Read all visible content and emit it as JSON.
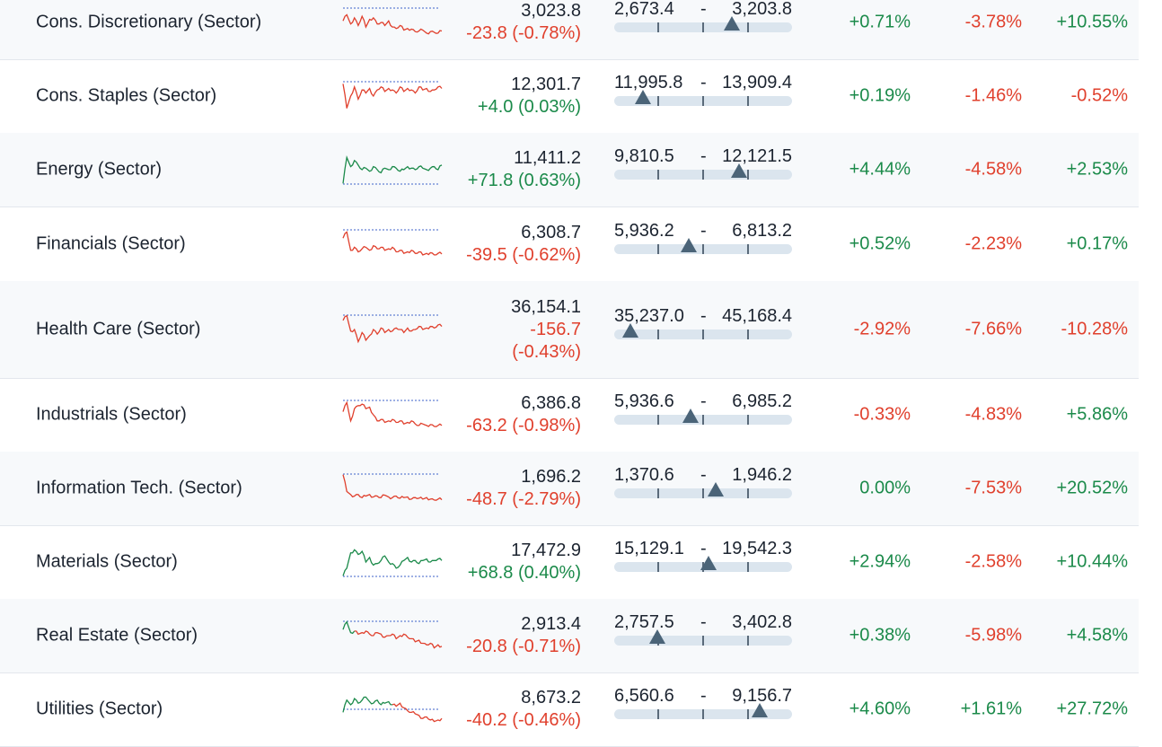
{
  "colors": {
    "up": "#1b8a4a",
    "down": "#e0402d",
    "marker": "#4b6478",
    "track": "#dbe5ee"
  },
  "rows": [
    {
      "name": "Cons. Discretionary (Sector)",
      "price": "3,023.8",
      "change": "-23.8",
      "change_pct": "(-0.78%)",
      "dir": "down",
      "range_low": "2,673.4",
      "range_sep": "-",
      "range_high": "3,203.8",
      "range_pos": 0.66,
      "p1": "+0.71%",
      "p1_dir": "up",
      "p2": "-3.78%",
      "p2_dir": "down",
      "p3": "+10.55%",
      "p3_dir": "up",
      "spark": {
        "color": "down",
        "ref": "top",
        "pts": [
          0.45,
          0.25,
          0.55,
          0.35,
          0.6,
          0.3,
          0.65,
          0.4,
          0.35,
          0.55,
          0.5,
          0.6,
          0.45,
          0.65,
          0.7,
          0.6,
          0.75,
          0.7,
          0.72,
          0.8,
          0.78,
          0.75,
          0.85,
          0.8,
          0.82,
          0.85,
          0.78
        ]
      }
    },
    {
      "name": "Cons. Staples (Sector)",
      "price": "12,301.7",
      "change": "+4.0",
      "change_pct": "(0.03%)",
      "dir": "up",
      "range_low": "11,995.8",
      "range_sep": "-",
      "range_high": "13,909.4",
      "range_pos": 0.16,
      "p1": "+0.19%",
      "p1_dir": "up",
      "p2": "-1.46%",
      "p2_dir": "down",
      "p3": "-0.52%",
      "p3_dir": "down",
      "spark": {
        "color": "down",
        "ref": "top",
        "pts": [
          0.1,
          0.9,
          0.5,
          0.2,
          0.6,
          0.3,
          0.4,
          0.25,
          0.5,
          0.3,
          0.2,
          0.35,
          0.25,
          0.3,
          0.4,
          0.2,
          0.35,
          0.25,
          0.3,
          0.4,
          0.2,
          0.3,
          0.25,
          0.35,
          0.3,
          0.2,
          0.25
        ]
      }
    },
    {
      "name": "Energy (Sector)",
      "price": "11,411.2",
      "change": "+71.8",
      "change_pct": "(0.63%)",
      "dir": "up",
      "range_low": "9,810.5",
      "range_sep": "-",
      "range_high": "12,121.5",
      "range_pos": 0.7,
      "p1": "+4.44%",
      "p1_dir": "up",
      "p2": "-4.58%",
      "p2_dir": "down",
      "p3": "+2.53%",
      "p3_dir": "up",
      "spark": {
        "color": "up",
        "ref": "bottom",
        "pts": [
          0.95,
          0.1,
          0.4,
          0.2,
          0.35,
          0.5,
          0.45,
          0.55,
          0.4,
          0.5,
          0.6,
          0.45,
          0.5,
          0.4,
          0.45,
          0.55,
          0.5,
          0.4,
          0.45,
          0.5,
          0.4,
          0.45,
          0.5,
          0.45,
          0.4,
          0.5,
          0.35
        ]
      }
    },
    {
      "name": "Financials (Sector)",
      "price": "6,308.7",
      "change": "-39.5",
      "change_pct": "(-0.62%)",
      "dir": "down",
      "range_low": "5,936.2",
      "range_sep": "-",
      "range_high": "6,813.2",
      "range_pos": 0.42,
      "p1": "+0.52%",
      "p1_dir": "up",
      "p2": "-2.23%",
      "p2_dir": "down",
      "p3": "+0.17%",
      "p3_dir": "up",
      "spark": {
        "color": "down",
        "ref": "top",
        "pts": [
          0.3,
          0.1,
          0.7,
          0.6,
          0.75,
          0.65,
          0.6,
          0.7,
          0.55,
          0.65,
          0.6,
          0.7,
          0.65,
          0.6,
          0.75,
          0.7,
          0.8,
          0.75,
          0.7,
          0.8,
          0.75,
          0.85,
          0.8,
          0.78,
          0.85,
          0.8,
          0.82
        ]
      }
    },
    {
      "name": "Health Care (Sector)",
      "price": "36,154.1",
      "change": "-156.7",
      "change_pct": "(-0.43%)",
      "dir": "down",
      "range_low": "35,237.0",
      "range_sep": "-",
      "range_high": "45,168.4",
      "range_pos": 0.09,
      "p1": "-2.92%",
      "p1_dir": "down",
      "p2": "-7.66%",
      "p2_dir": "down",
      "p3": "-10.28%",
      "p3_dir": "down",
      "spark": {
        "color": "down",
        "ref": "top",
        "pts": [
          0.2,
          0.05,
          0.55,
          0.5,
          0.9,
          0.6,
          0.85,
          0.7,
          0.5,
          0.65,
          0.45,
          0.6,
          0.5,
          0.55,
          0.45,
          0.5,
          0.6,
          0.45,
          0.55,
          0.5,
          0.4,
          0.5,
          0.45,
          0.4,
          0.45,
          0.35,
          0.4
        ]
      }
    },
    {
      "name": "Industrials (Sector)",
      "price": "6,386.8",
      "change": "-63.2",
      "change_pct": "(-0.98%)",
      "dir": "down",
      "range_low": "5,936.6",
      "range_sep": "-",
      "range_high": "6,985.2",
      "range_pos": 0.43,
      "p1": "-0.33%",
      "p1_dir": "down",
      "p2": "-4.83%",
      "p2_dir": "down",
      "p3": "+5.86%",
      "p3_dir": "up",
      "spark": {
        "color": "down",
        "ref": "top",
        "pts": [
          0.4,
          0.1,
          0.7,
          0.3,
          0.2,
          0.15,
          0.3,
          0.25,
          0.5,
          0.7,
          0.65,
          0.75,
          0.7,
          0.65,
          0.75,
          0.7,
          0.8,
          0.75,
          0.7,
          0.8,
          0.85,
          0.8,
          0.85,
          0.82,
          0.88,
          0.85,
          0.85
        ]
      }
    },
    {
      "name": "Information Tech. (Sector)",
      "price": "1,696.2",
      "change": "-48.7",
      "change_pct": "(-2.79%)",
      "dir": "down",
      "range_low": "1,370.6",
      "range_sep": "-",
      "range_high": "1,946.2",
      "range_pos": 0.57,
      "p1": "0.00%",
      "p1_dir": "up",
      "p2": "-7.53%",
      "p2_dir": "down",
      "p3": "+20.52%",
      "p3_dir": "up",
      "spark": {
        "color": "down",
        "ref": "top",
        "pts": [
          0.05,
          0.6,
          0.7,
          0.75,
          0.7,
          0.8,
          0.75,
          0.7,
          0.78,
          0.75,
          0.8,
          0.72,
          0.78,
          0.8,
          0.75,
          0.82,
          0.8,
          0.78,
          0.85,
          0.8,
          0.82,
          0.85,
          0.8,
          0.85,
          0.88,
          0.85,
          0.87
        ]
      }
    },
    {
      "name": "Materials (Sector)",
      "price": "17,472.9",
      "change": "+68.8",
      "change_pct": "(0.40%)",
      "dir": "up",
      "range_low": "15,129.1",
      "range_sep": "-",
      "range_high": "19,542.3",
      "range_pos": 0.53,
      "p1": "+2.94%",
      "p1_dir": "up",
      "p2": "-2.58%",
      "p2_dir": "down",
      "p3": "+10.44%",
      "p3_dir": "up",
      "spark": {
        "color": "up",
        "ref": "bottom",
        "pts": [
          0.95,
          0.7,
          0.2,
          0.1,
          0.25,
          0.15,
          0.5,
          0.35,
          0.6,
          0.55,
          0.45,
          0.3,
          0.5,
          0.55,
          0.7,
          0.6,
          0.45,
          0.35,
          0.5,
          0.45,
          0.55,
          0.45,
          0.4,
          0.5,
          0.45,
          0.4,
          0.45
        ]
      }
    },
    {
      "name": "Real Estate (Sector)",
      "price": "2,913.4",
      "change": "-20.8",
      "change_pct": "(-0.71%)",
      "dir": "down",
      "range_low": "2,757.5",
      "range_sep": "-",
      "range_high": "3,402.8",
      "range_pos": 0.24,
      "p1": "+0.38%",
      "p1_dir": "up",
      "p2": "-5.98%",
      "p2_dir": "down",
      "p3": "+4.58%",
      "p3_dir": "up",
      "spark": {
        "color": "mixed",
        "ref": "top",
        "split": 0.12,
        "pts": [
          0.3,
          0.05,
          0.4,
          0.35,
          0.45,
          0.4,
          0.35,
          0.45,
          0.5,
          0.4,
          0.45,
          0.55,
          0.5,
          0.45,
          0.6,
          0.5,
          0.45,
          0.55,
          0.6,
          0.7,
          0.65,
          0.75,
          0.8,
          0.75,
          0.9,
          0.8,
          0.85
        ]
      }
    },
    {
      "name": "Utilities (Sector)",
      "price": "8,673.2",
      "change": "-40.2",
      "change_pct": "(-0.46%)",
      "dir": "down",
      "range_low": "6,560.6",
      "range_sep": "-",
      "range_high": "9,156.7",
      "range_pos": 0.82,
      "p1": "+4.60%",
      "p1_dir": "up",
      "p2": "+1.61%",
      "p2_dir": "up",
      "p3": "+27.72%",
      "p3_dir": "up",
      "spark": {
        "color": "mixed",
        "ref": "mid",
        "split": 0.5,
        "pts": [
          0.6,
          0.2,
          0.35,
          0.15,
          0.3,
          0.2,
          0.1,
          0.25,
          0.3,
          0.2,
          0.35,
          0.3,
          0.25,
          0.35,
          0.4,
          0.3,
          0.45,
          0.55,
          0.6,
          0.65,
          0.7,
          0.8,
          0.75,
          0.85,
          0.9,
          0.85,
          0.8
        ]
      }
    }
  ]
}
